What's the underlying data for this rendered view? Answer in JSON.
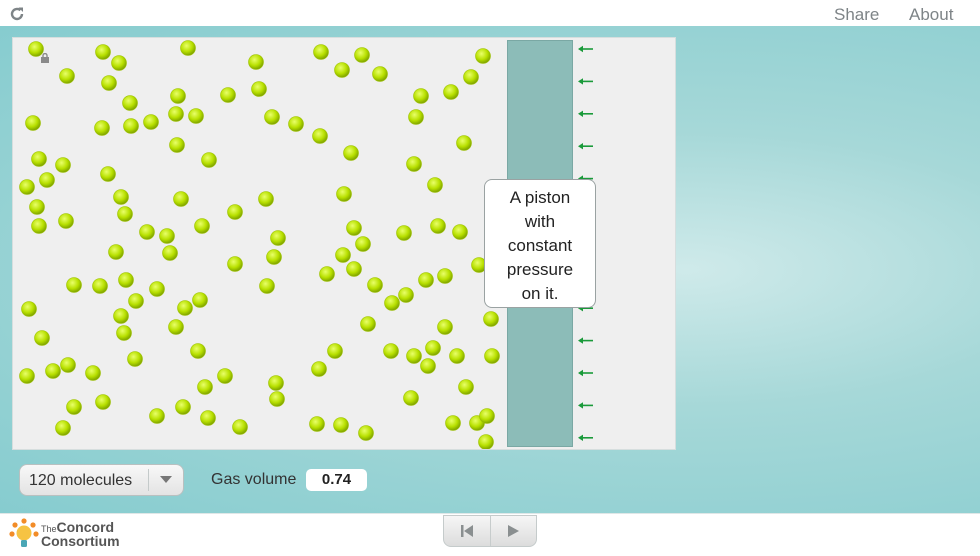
{
  "topbar": {
    "share_label": "Share",
    "about_label": "About",
    "reload_icon": "reload-icon"
  },
  "simulation": {
    "piston_tooltip": [
      "A piston",
      "with",
      "constant",
      "pressure",
      "on it."
    ],
    "molecule_color": "#b8e000",
    "piston_color": "#8cbcb8",
    "arrow_color": "#1a9a3a"
  },
  "controls": {
    "molecules_select": {
      "selected": "120 molecules"
    },
    "gas_volume_label": "Gas volume",
    "gas_volume_value": "0.74"
  },
  "footer": {
    "logo_text": {
      "line1_small": "The",
      "line1": "Concord",
      "line2": "Consortium"
    },
    "playback": {
      "reset_icon": "reset-icon",
      "play_icon": "play-icon"
    }
  }
}
